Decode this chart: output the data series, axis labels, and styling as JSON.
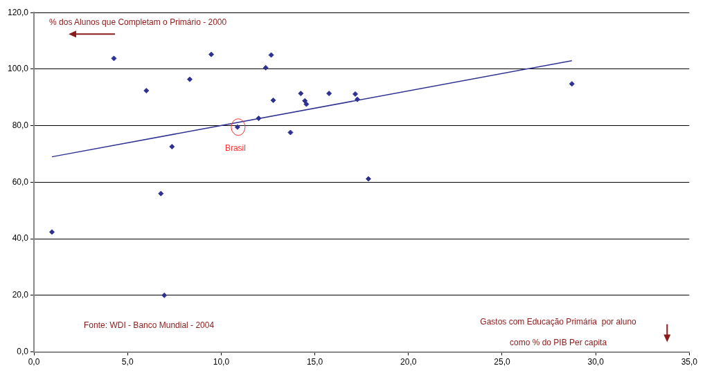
{
  "chart_data": {
    "type": "scatter",
    "ylabel": "% dos Alunos que Completam o Primário - 2000",
    "xlabel": "Gastos com Educação Primária  por aluno\ncomo % do PIB Per capita",
    "annotations": [
      "Fonte: WDI - Banco Mundial - 2004",
      {
        "text": "Brasil",
        "x": 10.87,
        "y": 79.5
      }
    ],
    "series": [
      {
        "marker": "diamond",
        "color": "#2e3192",
        "x": [
          0.96,
          4.27,
          6.0,
          6.78,
          6.96,
          7.37,
          8.32,
          9.47,
          10.87,
          12.0,
          12.38,
          12.67,
          12.78,
          13.7,
          14.25,
          14.47,
          14.55,
          15.76,
          17.16,
          17.27,
          17.86,
          28.73
        ],
        "values": [
          42.4,
          103.8,
          92.4,
          56.0,
          20.0,
          72.6,
          96.4,
          105.2,
          79.5,
          82.6,
          100.5,
          105.0,
          89.0,
          77.6,
          91.4,
          88.8,
          87.6,
          91.4,
          91.2,
          89.3,
          61.2,
          94.8
        ]
      },
      {
        "type": "line",
        "color": "#2e3192",
        "x": [
          0.96,
          28.73
        ],
        "values": [
          69.0,
          103.0
        ]
      }
    ],
    "grid": "y",
    "legend": false,
    "xlim": [
      0,
      35
    ],
    "xticks": [
      {
        "value": 0,
        "label": "0,0"
      },
      {
        "value": 5,
        "label": "5,0"
      },
      {
        "value": 10,
        "label": "10,0"
      },
      {
        "value": 15,
        "label": "15,0"
      },
      {
        "value": 20,
        "label": "20,0"
      },
      {
        "value": 25,
        "label": "25,0"
      },
      {
        "value": 30,
        "label": "30,0"
      },
      {
        "value": 35,
        "label": "35,0"
      }
    ],
    "ylim": [
      0,
      120
    ],
    "yticks": [
      {
        "value": 0,
        "label": "0,0"
      },
      {
        "value": 20,
        "label": "20,0"
      },
      {
        "value": 40,
        "label": "40,0"
      },
      {
        "value": 60,
        "label": "60,0"
      },
      {
        "value": 80,
        "label": "80,0"
      },
      {
        "value": 100,
        "label": "100,0"
      },
      {
        "value": 120,
        "label": "120,0"
      }
    ]
  }
}
